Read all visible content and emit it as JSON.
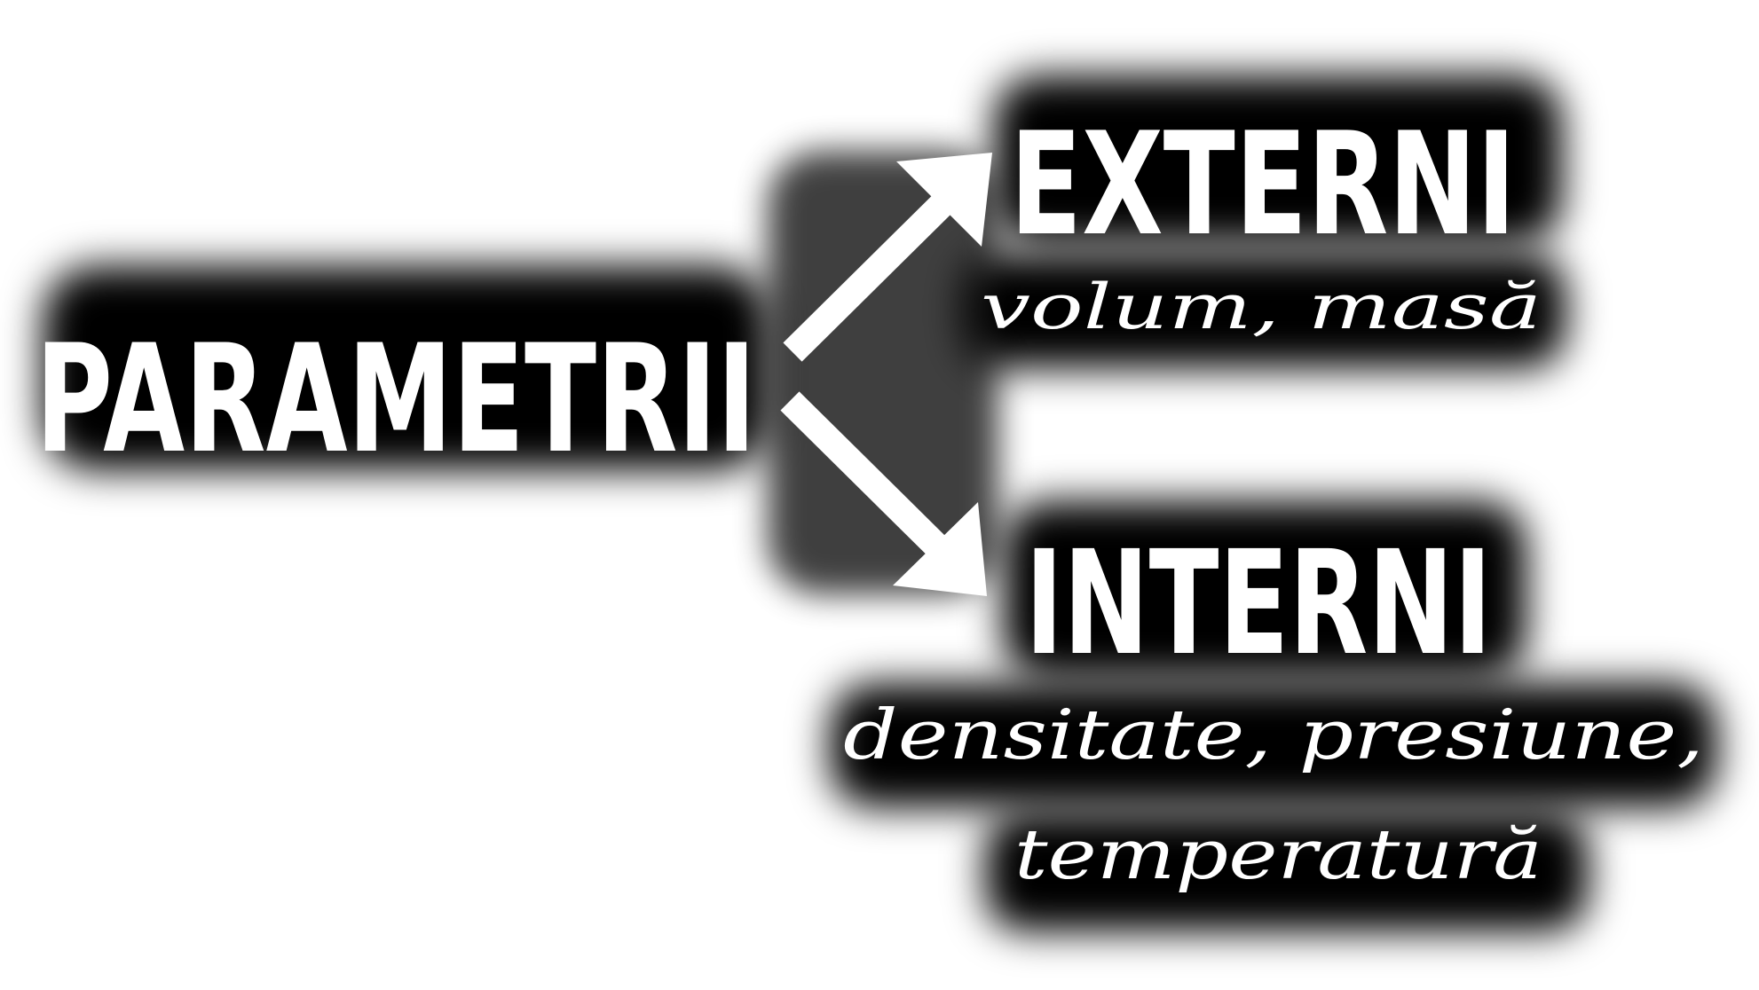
{
  "nodes": {
    "root": {
      "label": "PARAMETRII"
    },
    "externi": {
      "label": "EXTERNI",
      "examples": "volum, masă"
    },
    "interni": {
      "label": "INTERNI",
      "examples_line1": "densitate, presiune,",
      "examples_line2": "temperatură"
    }
  },
  "edges": [
    {
      "from": "PARAMETRII",
      "to": "EXTERNI"
    },
    {
      "from": "PARAMETRII",
      "to": "INTERNI"
    }
  ],
  "colors": {
    "text": "#ffffff",
    "glow": "#000000",
    "background": "#ffffff"
  }
}
